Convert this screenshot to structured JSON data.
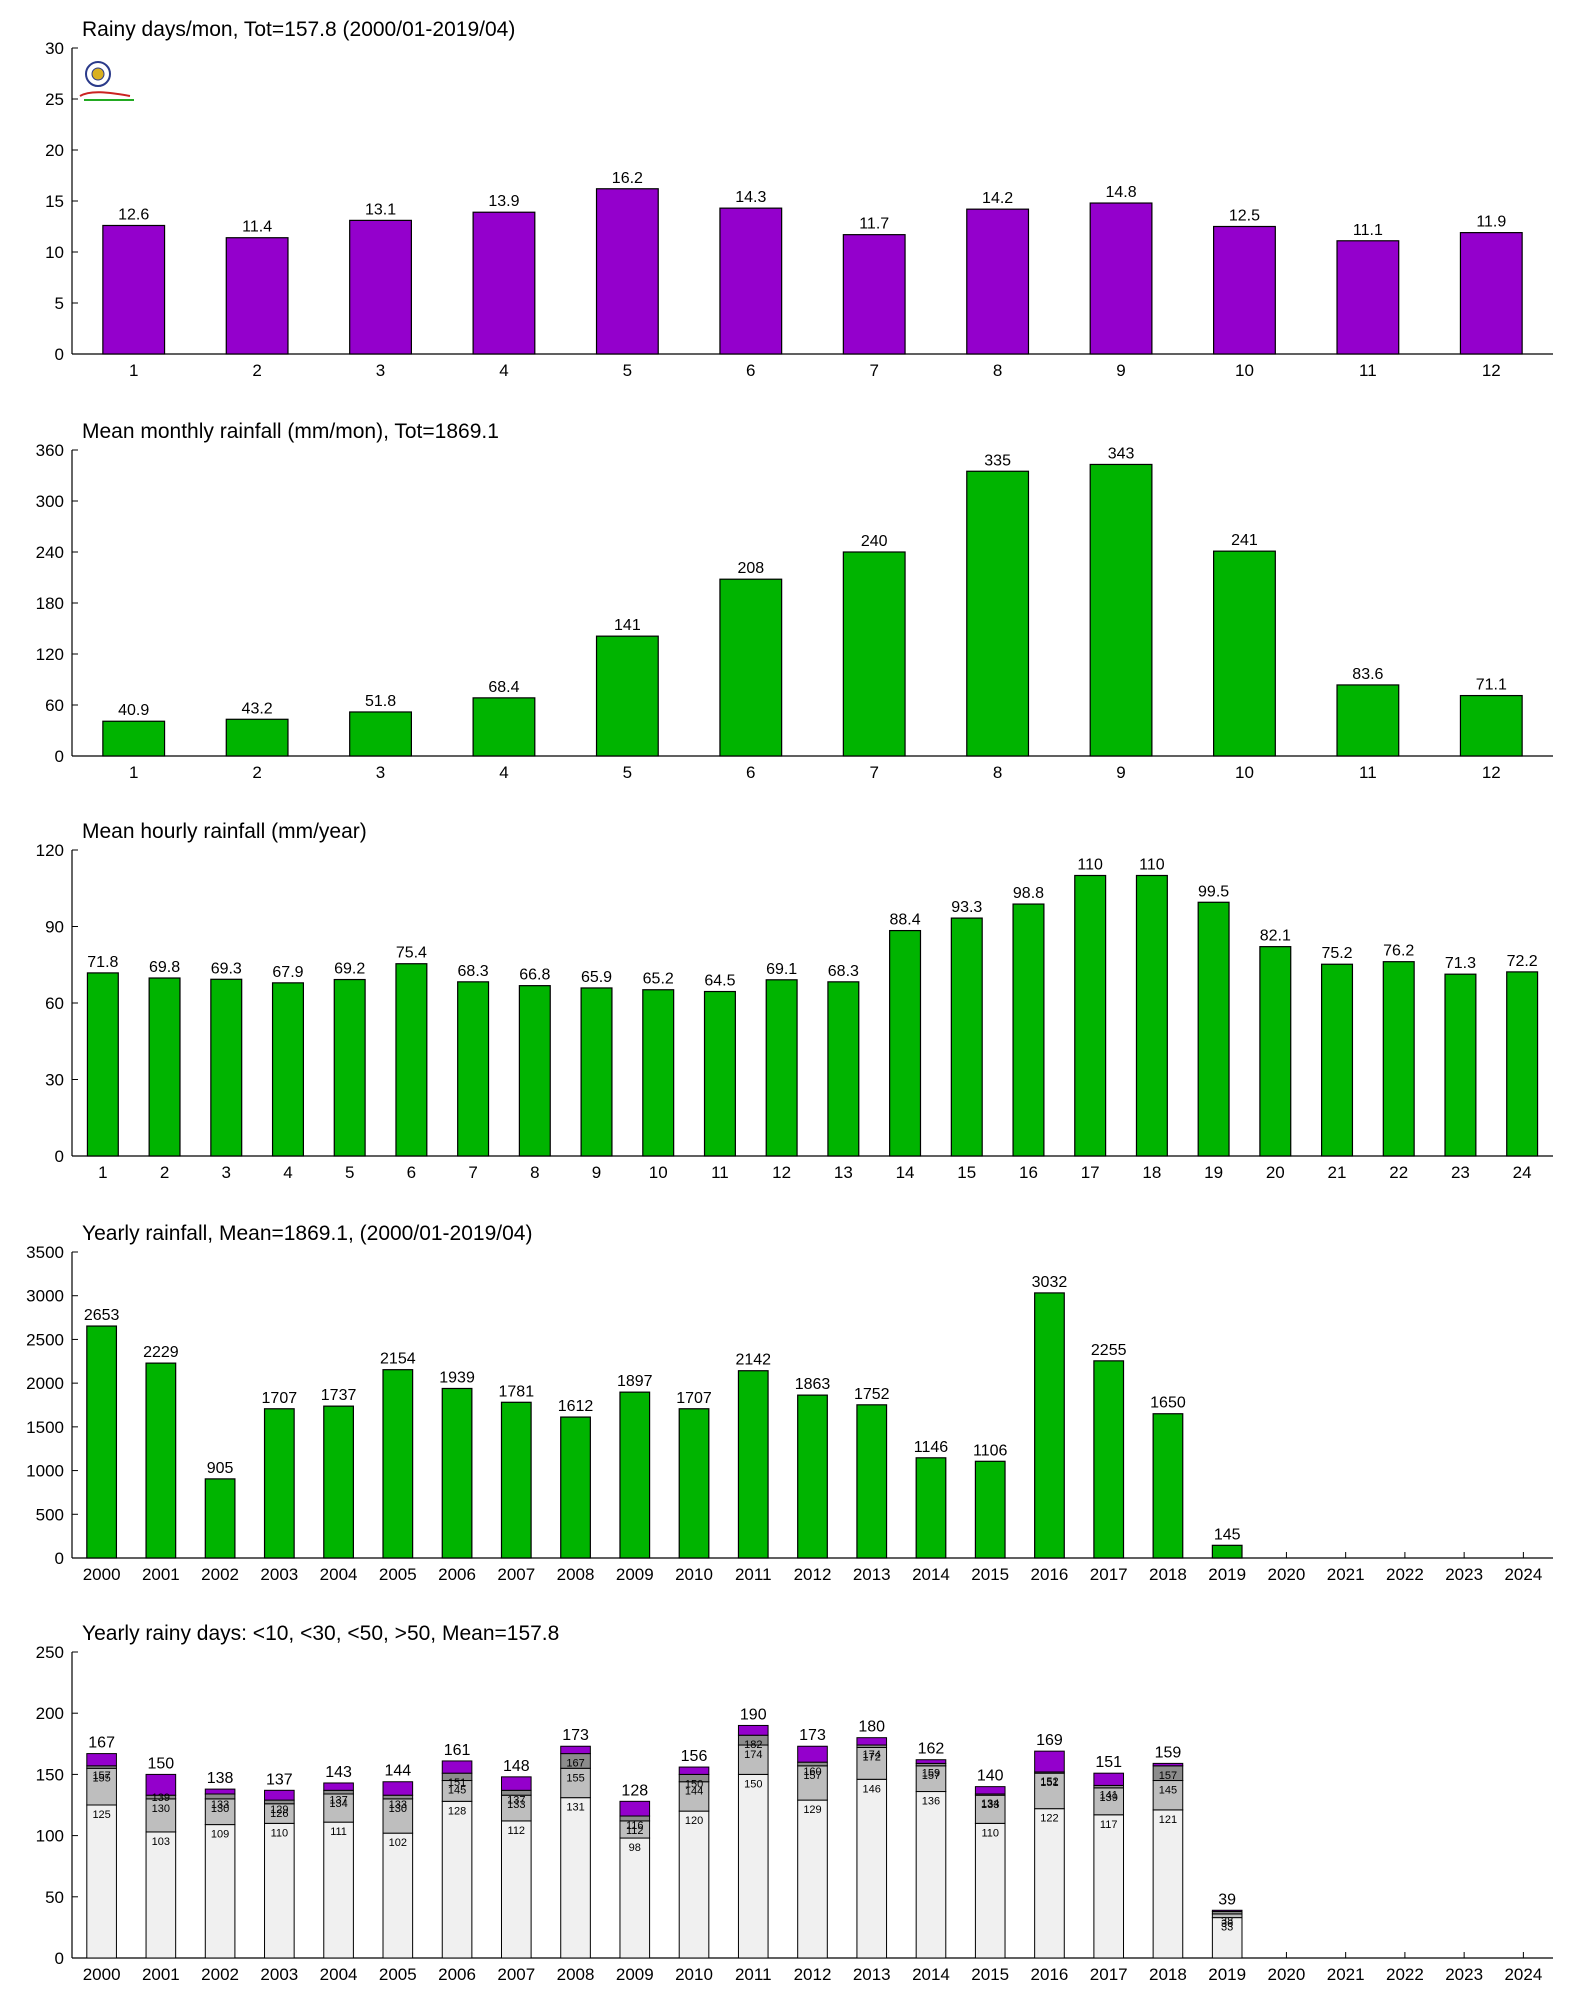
{
  "chart_data": [
    {
      "type": "bar",
      "title": "Rainy days/mon, Tot=157.8 (2000/01-2019/04)",
      "categories": [
        "1",
        "2",
        "3",
        "4",
        "5",
        "6",
        "7",
        "8",
        "9",
        "10",
        "11",
        "12"
      ],
      "values": [
        12.6,
        11.4,
        13.1,
        13.9,
        16.2,
        14.3,
        11.7,
        14.2,
        14.8,
        12.5,
        11.1,
        11.9
      ],
      "labels": [
        "12.6",
        "11.4",
        "13.1",
        "13.9",
        "16.2",
        "14.3",
        "11.7",
        "14.2",
        "14.8",
        "12.5",
        "11.1",
        "11.9"
      ],
      "ylim": [
        0,
        30
      ],
      "yticks": [
        0,
        5,
        10,
        15,
        20,
        25,
        30
      ],
      "color": "#9400cc",
      "logo": true
    },
    {
      "type": "bar",
      "title": "Mean monthly rainfall (mm/mon), Tot=1869.1",
      "categories": [
        "1",
        "2",
        "3",
        "4",
        "5",
        "6",
        "7",
        "8",
        "9",
        "10",
        "11",
        "12"
      ],
      "values": [
        40.9,
        43.2,
        51.8,
        68.4,
        141,
        208,
        240,
        335,
        343,
        241,
        83.6,
        71.1
      ],
      "labels": [
        "40.9",
        "43.2",
        "51.8",
        "68.4",
        "141",
        "208",
        "240",
        "335",
        "343",
        "241",
        "83.6",
        "71.1"
      ],
      "ylim": [
        0,
        360
      ],
      "yticks": [
        0,
        60,
        120,
        180,
        240,
        300,
        360
      ],
      "color": "#00b400"
    },
    {
      "type": "bar",
      "title": "Mean hourly rainfall (mm/year)",
      "categories": [
        "1",
        "2",
        "3",
        "4",
        "5",
        "6",
        "7",
        "8",
        "9",
        "10",
        "11",
        "12",
        "13",
        "14",
        "15",
        "16",
        "17",
        "18",
        "19",
        "20",
        "21",
        "22",
        "23",
        "24"
      ],
      "values": [
        71.8,
        69.8,
        69.3,
        67.9,
        69.2,
        75.4,
        68.3,
        66.8,
        65.9,
        65.2,
        64.5,
        69.1,
        68.3,
        88.4,
        93.3,
        98.8,
        110,
        110,
        99.5,
        82.1,
        75.2,
        76.2,
        71.3,
        72.2
      ],
      "labels": [
        "71.8",
        "69.8",
        "69.3",
        "67.9",
        "69.2",
        "75.4",
        "68.3",
        "66.8",
        "65.9",
        "65.2",
        "64.5",
        "69.1",
        "68.3",
        "88.4",
        "93.3",
        "98.8",
        "110",
        "110",
        "99.5",
        "82.1",
        "75.2",
        "76.2",
        "71.3",
        "72.2"
      ],
      "ylim": [
        0,
        120
      ],
      "yticks": [
        0,
        30,
        60,
        90,
        120
      ],
      "color": "#00b400"
    },
    {
      "type": "bar",
      "title": "Yearly rainfall, Mean=1869.1, (2000/01-2019/04)",
      "categories": [
        "2000",
        "2001",
        "2002",
        "2003",
        "2004",
        "2005",
        "2006",
        "2007",
        "2008",
        "2009",
        "2010",
        "2011",
        "2012",
        "2013",
        "2014",
        "2015",
        "2016",
        "2017",
        "2018",
        "2019",
        "2020",
        "2021",
        "2022",
        "2023",
        "2024"
      ],
      "values": [
        2653,
        2229,
        905,
        1707,
        1737,
        2154,
        1939,
        1781,
        1612,
        1897,
        1707,
        2142,
        1863,
        1752,
        1146,
        1106,
        3032,
        2255,
        1650,
        145,
        null,
        null,
        null,
        null,
        null
      ],
      "labels": [
        "2653",
        "2229",
        "905",
        "1707",
        "1737",
        "2154",
        "1939",
        "1781",
        "1612",
        "1897",
        "1707",
        "2142",
        "1863",
        "1752",
        "1146",
        "1106",
        "3032",
        "2255",
        "1650",
        "145",
        "",
        "",
        "",
        "",
        ""
      ],
      "ylim": [
        0,
        3500
      ],
      "yticks": [
        0,
        500,
        1000,
        1500,
        2000,
        2500,
        3000,
        3500
      ],
      "color": "#00b400"
    },
    {
      "type": "stacked_bar",
      "title": "Yearly rainy days: <10, <30, <50, >50, Mean=157.8",
      "categories": [
        "2000",
        "2001",
        "2002",
        "2003",
        "2004",
        "2005",
        "2006",
        "2007",
        "2008",
        "2009",
        "2010",
        "2011",
        "2012",
        "2013",
        "2014",
        "2015",
        "2016",
        "2017",
        "2018",
        "2019",
        "2020",
        "2021",
        "2022",
        "2023",
        "2024"
      ],
      "series": [
        {
          "values": [
            125,
            103,
            109,
            110,
            111,
            102,
            128,
            112,
            131,
            98,
            120,
            150,
            129,
            146,
            136,
            110,
            122,
            117,
            121,
            33,
            null,
            null,
            null,
            null,
            null
          ],
          "color": "#f0f0f0"
        },
        {
          "values": [
            30,
            27,
            21,
            16,
            23,
            28,
            17,
            21,
            24,
            14,
            24,
            24,
            28,
            26,
            21,
            23,
            29,
            22,
            24,
            3,
            null,
            null,
            null,
            null,
            null
          ],
          "color": "#bebebe"
        },
        {
          "values": [
            2,
            3,
            4,
            3,
            3,
            3,
            6,
            4,
            12,
            4,
            6,
            8,
            3,
            2,
            2,
            1,
            1,
            2,
            12,
            2,
            null,
            null,
            null,
            null,
            null
          ],
          "color": "#8c8c8c"
        },
        {
          "values": [
            10,
            17,
            4,
            8,
            6,
            11,
            10,
            11,
            6,
            12,
            6,
            8,
            13,
            6,
            3,
            6,
            17,
            10,
            2,
            1,
            null,
            null,
            null,
            null,
            null
          ],
          "color": "#9400cc"
        }
      ],
      "cum_labels": [
        [
          "125",
          "103",
          "109",
          "110",
          "111",
          "102",
          "128",
          "112",
          "131",
          "98",
          "120",
          "150",
          "129",
          "146",
          "136",
          "110",
          "122",
          "117",
          "121",
          "33",
          "",
          "",
          "",
          "",
          ""
        ],
        [
          "155",
          "130",
          "130",
          "126",
          "134",
          "130",
          "145",
          "133",
          "155",
          "112",
          "144",
          "174",
          "157",
          "172",
          "157",
          "133",
          "151",
          "139",
          "145",
          "36",
          "",
          "",
          "",
          "",
          ""
        ],
        [
          "157",
          "139",
          "133",
          "129",
          "137",
          "133",
          "151",
          "137",
          "167",
          "116",
          "150",
          "182",
          "160",
          "174",
          "159",
          "134",
          "152",
          "141",
          "157",
          "38",
          "",
          "",
          "",
          "",
          ""
        ]
      ],
      "totals": [
        "167",
        "150",
        "138",
        "137",
        "143",
        "144",
        "161",
        "148",
        "173",
        "128",
        "156",
        "190",
        "173",
        "180",
        "162",
        "140",
        "169",
        "151",
        "159",
        "39",
        "",
        "",
        "",
        "",
        ""
      ],
      "total_values": [
        167,
        150,
        138,
        137,
        143,
        144,
        161,
        148,
        173,
        128,
        156,
        190,
        173,
        180,
        162,
        140,
        169,
        151,
        159,
        39,
        null,
        null,
        null,
        null,
        null
      ],
      "ylim": [
        0,
        250
      ],
      "yticks": [
        0,
        50,
        100,
        150,
        200,
        250
      ]
    }
  ]
}
